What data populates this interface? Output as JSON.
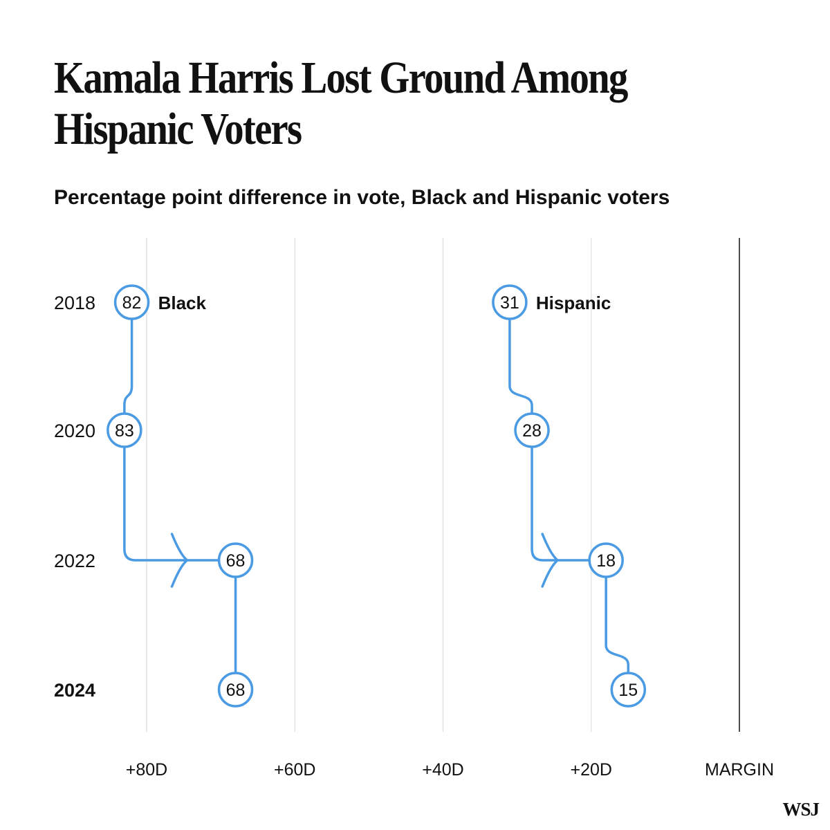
{
  "title": "Kamala Harris Lost Ground Among Hispanic Voters",
  "subtitle": "Percentage point difference in vote, Black and Hispanic voters",
  "logo": "WSJ",
  "colors": {
    "series": "#4a9be3",
    "grid": "#dddddd",
    "axis": "#222222",
    "text": "#111111",
    "node_fill": "#ffffff"
  },
  "chart_data": {
    "type": "line",
    "x_axis": {
      "reversed": true,
      "domain": [
        90,
        0
      ],
      "ticks": [
        {
          "value": 80,
          "label": "+80D"
        },
        {
          "value": 60,
          "label": "+60D"
        },
        {
          "value": 40,
          "label": "+40D"
        },
        {
          "value": 20,
          "label": "+20D"
        },
        {
          "value": 0,
          "label": "MARGIN"
        }
      ],
      "grid": true
    },
    "years": [
      "2018",
      "2020",
      "2022",
      "2024"
    ],
    "highlight_year": "2024",
    "series": [
      {
        "name": "Black",
        "points": [
          {
            "year": "2018",
            "value": 82
          },
          {
            "year": "2020",
            "value": 83
          },
          {
            "year": "2022",
            "value": 68
          },
          {
            "year": "2024",
            "value": 68
          }
        ]
      },
      {
        "name": "Hispanic",
        "points": [
          {
            "year": "2018",
            "value": 31
          },
          {
            "year": "2020",
            "value": 28
          },
          {
            "year": "2022",
            "value": 18
          },
          {
            "year": "2024",
            "value": 15
          }
        ]
      }
    ]
  }
}
